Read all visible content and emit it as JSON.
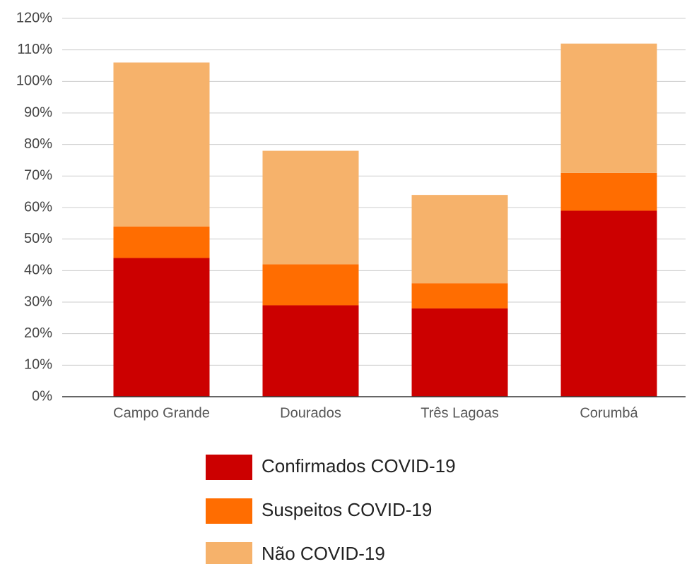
{
  "chart_data": {
    "type": "stacked_bar",
    "categories": [
      "Campo Grande",
      "Dourados",
      "Três Lagoas",
      "Corumbá"
    ],
    "series": [
      {
        "name": "Confirmados COVID-19",
        "color": "#cc0000",
        "values": [
          44,
          29,
          28,
          59
        ]
      },
      {
        "name": "Suspeitos COVID-19",
        "color": "#ff6d01",
        "values": [
          10,
          13,
          8,
          12
        ]
      },
      {
        "name": "Não COVID-19",
        "color": "#f6b26b",
        "values": [
          52,
          36,
          28,
          41
        ]
      }
    ],
    "ylim": [
      0,
      120
    ],
    "yticks": [
      {
        "value": 0,
        "label": "0%"
      },
      {
        "value": 10,
        "label": "10%"
      },
      {
        "value": 20,
        "label": "20%"
      },
      {
        "value": 30,
        "label": "30%"
      },
      {
        "value": 40,
        "label": "40%"
      },
      {
        "value": 50,
        "label": "50%"
      },
      {
        "value": 60,
        "label": "60%"
      },
      {
        "value": 70,
        "label": "70%"
      },
      {
        "value": 80,
        "label": "80%"
      },
      {
        "value": 90,
        "label": "90%"
      },
      {
        "value": 100,
        "label": "100%"
      },
      {
        "value": 110,
        "label": "110%"
      },
      {
        "value": 120,
        "label": "120%"
      }
    ],
    "grid": true,
    "legend": "bottom"
  }
}
